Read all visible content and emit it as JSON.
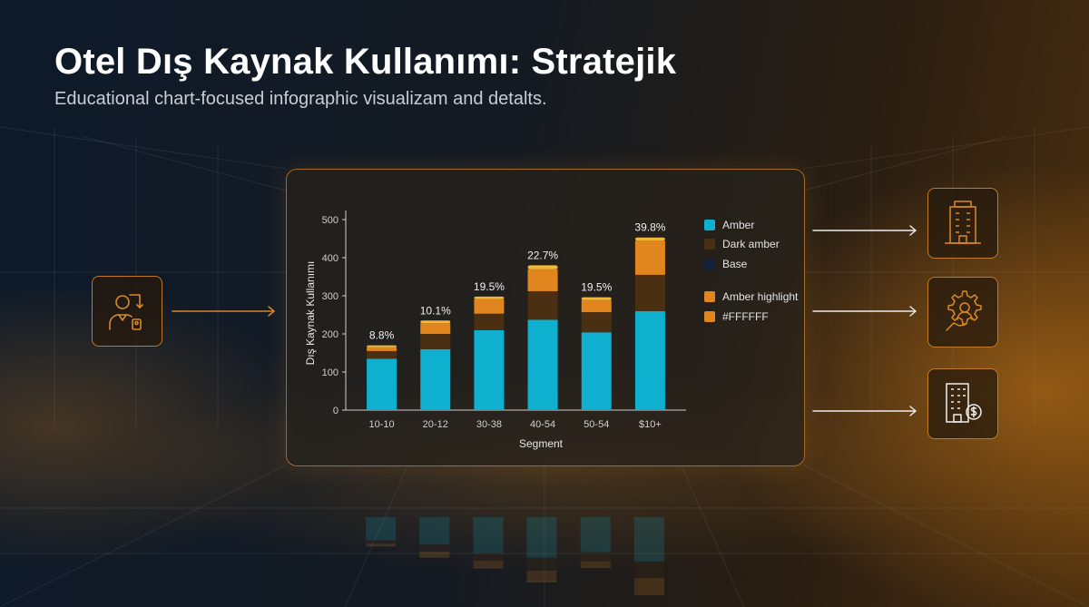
{
  "header": {
    "title": "Otel Dış Kaynak Kullanımı: Stratejik",
    "subtitle": "Educational chart-focused infographic visualizam and detalts."
  },
  "chart_data": {
    "type": "bar",
    "stacked": true,
    "categories": [
      "10-10",
      "20-12",
      "30-38",
      "40-54",
      "50-54",
      "$10+"
    ],
    "series": [
      {
        "name": "Amber",
        "color": "#0fb0cf",
        "values": [
          135,
          160,
          210,
          237,
          204,
          260
        ]
      },
      {
        "name": "Dark amber",
        "color": "#4a2f12",
        "values": [
          20,
          40,
          43,
          75,
          53,
          95
        ]
      },
      {
        "name": "#FFFFFF",
        "color": "#e1861e",
        "values": [
          10,
          28,
          38,
          58,
          32,
          90
        ]
      },
      {
        "name": "Amber highlight",
        "color": "#f4b838",
        "values": [
          5,
          7,
          7,
          10,
          7,
          8
        ]
      }
    ],
    "legend": [
      {
        "name": "Amber",
        "color": "#0fb0cf"
      },
      {
        "name": "Dark amber",
        "color": "#4a2f12"
      },
      {
        "name": "Base",
        "color": "#13233f"
      },
      {
        "name": "Amber highlight",
        "color": "#e1861e"
      },
      {
        "name": "#FFFFFF",
        "color": "#e1861e"
      }
    ],
    "data_labels": [
      "8.8%",
      "10.1%",
      "19.5%",
      "22.7%",
      "19.5%",
      "39.8%"
    ],
    "xlabel": "Segment",
    "ylabel": "Dış Kaynak Kullanımı",
    "ylim": [
      0,
      500
    ],
    "yticks": [
      0,
      100,
      200,
      300,
      400,
      500
    ],
    "grid": false,
    "legend_position": "right"
  },
  "icons": {
    "left": "person-document-icon",
    "right": [
      "hotel-building-icon",
      "gear-person-icon",
      "building-dollar-icon"
    ]
  },
  "colors": {
    "accent": "#e1861e",
    "panel_border": "#a56a22",
    "text_muted": "#c9ccd2"
  }
}
